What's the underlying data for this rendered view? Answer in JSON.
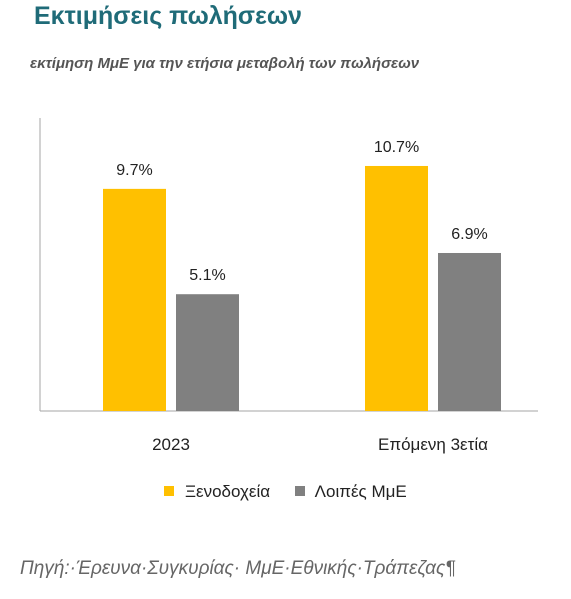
{
  "header": {
    "title": "Εκτιμήσεις πωλήσεων",
    "subtitle": "εκτίμηση ΜμΕ για την ετήσια μεταβολή των πωλήσεων"
  },
  "source": "Πηγή:·Έρευνα·Συγκυρίας· ΜμΕ·Εθνικής·Τράπεζας¶",
  "colors": {
    "series1": "#FFC000",
    "series2": "#808080",
    "axis": "#a6a6a6"
  },
  "chart_data": {
    "type": "bar",
    "categories": [
      "2023",
      "Επόμενη 3ετία"
    ],
    "series": [
      {
        "name": "Ξενοδοχεία",
        "values": [
          9.7,
          10.7
        ],
        "labels": [
          "9.7%",
          "10.7%"
        ],
        "color": "#FFC000"
      },
      {
        "name": "Λοιπές ΜμΕ",
        "values": [
          5.1,
          6.9
        ],
        "labels": [
          "5.1%",
          "6.9%"
        ],
        "color": "#808080"
      }
    ],
    "title": "Εκτιμήσεις πωλήσεων",
    "subtitle": "εκτίμηση ΜμΕ για την ετήσια μεταβολή των πωλήσεων",
    "xlabel": "",
    "ylabel": "",
    "ylim": [
      0,
      12
    ],
    "grid": false,
    "legend": "bottom"
  }
}
